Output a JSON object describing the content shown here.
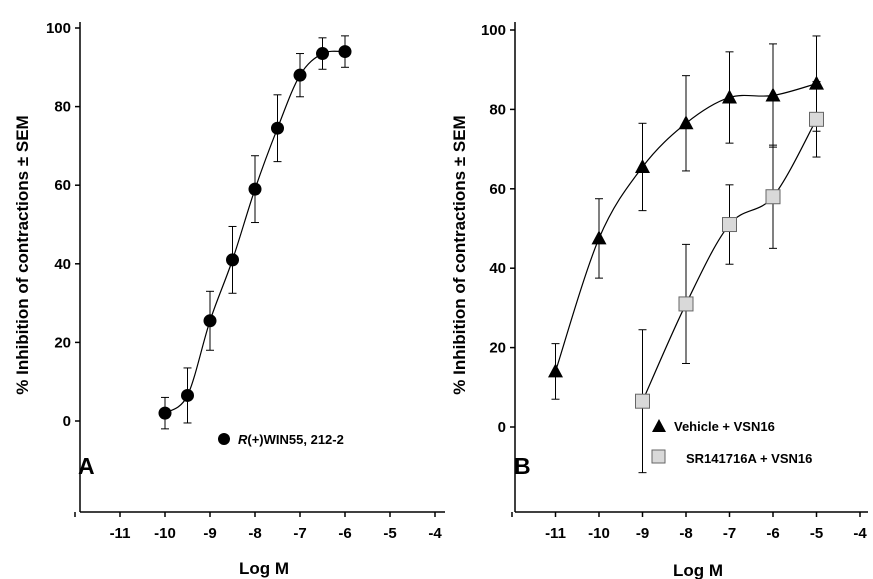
{
  "chart_data": [
    {
      "type": "line",
      "panel": "A",
      "xlabel": "Log M",
      "ylabel": "% Inhibition of contractions ± SEM",
      "xlim": [
        -12,
        -4
      ],
      "ylim": [
        -20,
        100
      ],
      "xticks": [
        "-11",
        "-10",
        "-9",
        "-8",
        "-7",
        "-6",
        "-5",
        "-4"
      ],
      "yticks": [
        "0",
        "20",
        "40",
        "60",
        "80",
        "100"
      ],
      "legend_position": "bottom-right",
      "series": [
        {
          "name": "R(+)WIN55, 212-2",
          "legend_italic_prefix": "R",
          "legend_rest": "(+)WIN55, 212-2",
          "marker": "circle",
          "color": "#000000",
          "x": [
            -10,
            -9.5,
            -9,
            -8.5,
            -8,
            -7.5,
            -7,
            -6.5,
            -6
          ],
          "y": [
            2,
            6.5,
            25.5,
            41,
            59,
            74.5,
            88,
            93.5,
            94
          ],
          "err": [
            4,
            7,
            7.5,
            8.5,
            8.5,
            8.5,
            5.5,
            4,
            4
          ]
        }
      ]
    },
    {
      "type": "line",
      "panel": "B",
      "xlabel": "Log M",
      "ylabel": "% Inhibition of contractions ± SEM",
      "xlim": [
        -12,
        -4
      ],
      "ylim": [
        -20,
        100
      ],
      "xticks": [
        "-11",
        "-10",
        "-9",
        "-8",
        "-7",
        "-6",
        "-5",
        "-4"
      ],
      "yticks": [
        "0",
        "20",
        "40",
        "60",
        "80",
        "100"
      ],
      "legend_position": "bottom-right",
      "series": [
        {
          "name": "Vehicle + VSN16",
          "marker": "triangle",
          "color": "#000000",
          "x": [
            -11,
            -10,
            -9,
            -8,
            -7,
            -6,
            -5
          ],
          "y": [
            14,
            47.5,
            65.5,
            76.5,
            83,
            83.5,
            86.5
          ],
          "err": [
            7,
            10,
            11,
            12,
            11.5,
            13,
            12
          ]
        },
        {
          "name": "SR141716A + VSN16",
          "marker": "square",
          "color": "#d9d9d9",
          "x": [
            -9,
            -8,
            -7,
            -6,
            -5
          ],
          "y": [
            6.5,
            31,
            51,
            58,
            77.5
          ],
          "err": [
            18,
            15,
            10,
            13,
            9.5
          ]
        }
      ]
    }
  ]
}
